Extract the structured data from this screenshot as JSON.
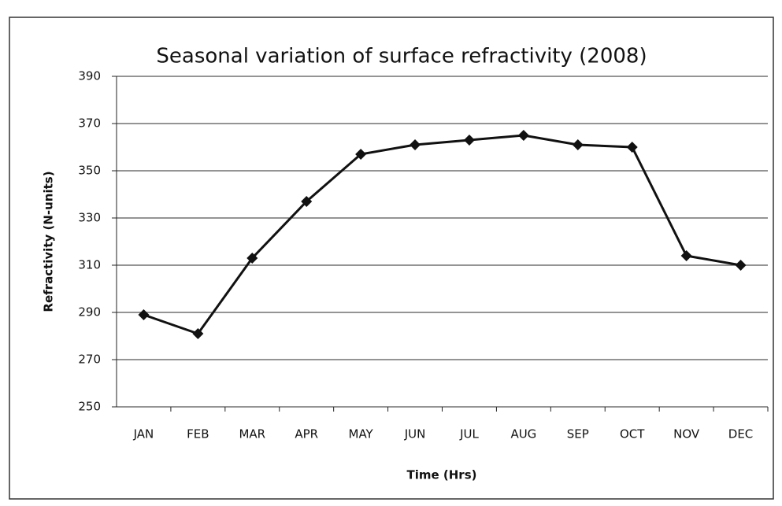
{
  "chart_data": {
    "type": "line",
    "title": "Seasonal variation of surface refractivity (2008)",
    "x_label": "Time (Hrs)",
    "y_label": "Refractivity (N-units)",
    "categories": [
      "JAN",
      "FEB",
      "MAR",
      "APR",
      "MAY",
      "JUN",
      "JUL",
      "AUG",
      "SEP",
      "OCT",
      "NOV",
      "DEC"
    ],
    "values": [
      289,
      281,
      313,
      337,
      357,
      361,
      363,
      365,
      361,
      360,
      314,
      310
    ],
    "color": "#111111",
    "ylim": [
      250,
      390
    ],
    "yticks": [
      250,
      270,
      290,
      310,
      330,
      350,
      370,
      390
    ],
    "grid": true
  }
}
